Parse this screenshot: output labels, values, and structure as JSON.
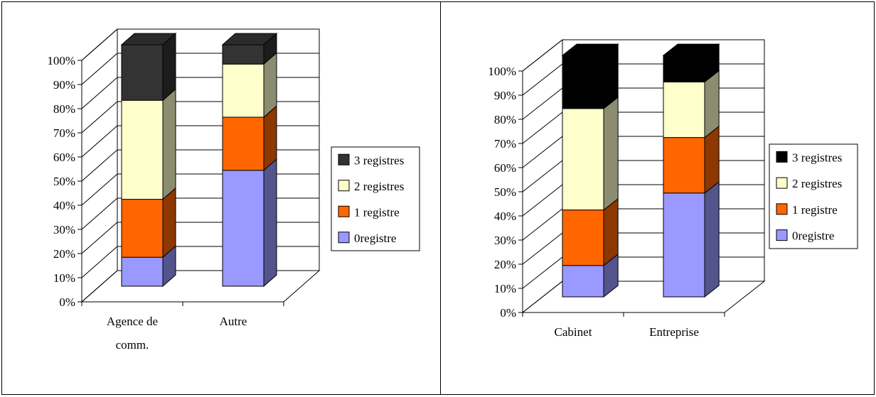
{
  "chart_data": [
    {
      "type": "bar",
      "stacked": true,
      "percent": true,
      "three_d": true,
      "categories": [
        [
          "Agence de",
          "comm."
        ],
        [
          "Autre"
        ]
      ],
      "y_ticks": [
        "0%",
        "10%",
        "20%",
        "30%",
        "40%",
        "50%",
        "60%",
        "70%",
        "80%",
        "90%",
        "100%"
      ],
      "ylim": [
        0,
        100
      ],
      "grid": true,
      "legend_position": "right",
      "series": [
        {
          "name": "0registre",
          "values": [
            12,
            48
          ],
          "color": "#9999ff"
        },
        {
          "name": "1 registre",
          "values": [
            24,
            22
          ],
          "color": "#ff6600"
        },
        {
          "name": "2 registres",
          "values": [
            41,
            22
          ],
          "color": "#ffffcc"
        },
        {
          "name": "3 registres",
          "values": [
            23,
            8
          ],
          "color": "#333333"
        }
      ]
    },
    {
      "type": "bar",
      "stacked": true,
      "percent": true,
      "three_d": true,
      "categories": [
        [
          "Cabinet"
        ],
        [
          "Entreprise"
        ]
      ],
      "y_ticks": [
        "0%",
        "10%",
        "20%",
        "30%",
        "40%",
        "50%",
        "60%",
        "70%",
        "80%",
        "90%",
        "100%"
      ],
      "ylim": [
        0,
        100
      ],
      "grid": true,
      "legend_position": "right",
      "series": [
        {
          "name": "0registre",
          "values": [
            13,
            43
          ],
          "color": "#9999ff"
        },
        {
          "name": "1 registre",
          "values": [
            23,
            23
          ],
          "color": "#ff6600"
        },
        {
          "name": "2 registres",
          "values": [
            42,
            23
          ],
          "color": "#ffffcc"
        },
        {
          "name": "3 registres",
          "values": [
            22,
            11
          ],
          "color": "#000000"
        }
      ]
    }
  ]
}
